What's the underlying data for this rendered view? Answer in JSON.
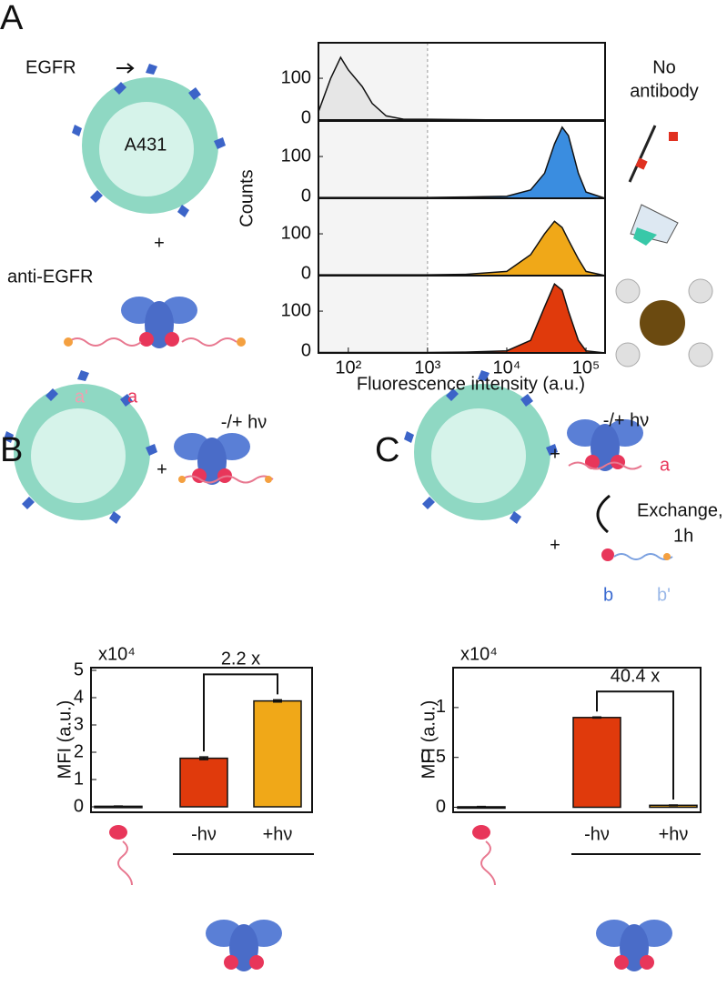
{
  "panel_labels": {
    "a": "A",
    "b": "B",
    "c": "C"
  },
  "diagram": {
    "egfr": "EGFR",
    "cell": "A431",
    "plus_a": "+",
    "antibody": "anti-EGFR",
    "strand_a_prime": "a'",
    "strand_a": "a",
    "no_antibody_1": "No",
    "no_antibody_2": "antibody",
    "b_light": "-/+ hν",
    "b_plus": "+",
    "c_light": "-/+ hν",
    "c_plus_1": "+",
    "c_plus_2": "+",
    "c_strand_a": "a",
    "exchange_1": "Exchange,",
    "exchange_2": "1h",
    "strand_b": "b",
    "strand_b_prime": "b'"
  },
  "chart_data": [
    {
      "type": "area",
      "xlabel": "Fluorescence intensity (a.u.)",
      "ylabel": "Counts",
      "log_x": true,
      "xlim": [
        42,
        174000
      ],
      "xticks": [
        {
          "value": 100,
          "label": "10²"
        },
        {
          "value": 1000,
          "label": "10³"
        },
        {
          "value": 10000,
          "label": "10⁴"
        },
        {
          "value": 100000,
          "label": "10⁵"
        }
      ],
      "ylim": [
        0,
        185
      ],
      "yticks": [
        0,
        100
      ],
      "reference_line_x": 1000,
      "x": [
        42,
        60,
        80,
        100,
        150,
        200,
        300,
        500,
        1000,
        3000,
        10000,
        20000,
        30000,
        40000,
        50000,
        60000,
        80000,
        100000,
        174000
      ],
      "panels": [
        {
          "color": "#e6e6e6",
          "values": [
            20,
            100,
            150,
            120,
            80,
            40,
            10,
            2,
            2,
            1,
            0,
            0,
            0,
            0,
            0,
            0,
            0,
            0,
            0
          ]
        },
        {
          "color": "#3a8de0",
          "values": [
            2,
            2,
            2,
            2,
            2,
            2,
            2,
            2,
            2,
            3,
            5,
            20,
            60,
            130,
            170,
            150,
            60,
            15,
            0
          ]
        },
        {
          "color": "#f0a818",
          "values": [
            2,
            2,
            2,
            2,
            2,
            2,
            2,
            2,
            2,
            3,
            10,
            50,
            100,
            130,
            115,
            85,
            40,
            10,
            0
          ]
        },
        {
          "color": "#e03a0c",
          "values": [
            1,
            1,
            1,
            1,
            1,
            1,
            1,
            1,
            1,
            2,
            5,
            30,
            110,
            165,
            150,
            100,
            30,
            5,
            0
          ]
        }
      ]
    },
    {
      "type": "bar",
      "ylabel": "MFI (a.u.)",
      "multiplier": "x10⁴",
      "categories": [
        null,
        "-hν",
        "+hν"
      ],
      "values": [
        0.02,
        1.78,
        3.88
      ],
      "errors": [
        0.01,
        0.05,
        0.04
      ],
      "colors": [
        "#e03a0c",
        "#e03a0c",
        "#f0a818"
      ],
      "ylim": [
        -0.2,
        5.1
      ],
      "yticks": [
        0,
        1,
        2,
        3,
        4,
        5
      ],
      "annotation": "2.2 x"
    },
    {
      "type": "bar",
      "ylabel": "MFI (a.u.)",
      "multiplier": "x10⁴",
      "categories": [
        null,
        "-hν",
        "+hν"
      ],
      "values": [
        0.005,
        0.9,
        0.02
      ],
      "errors": [
        0.003,
        0.005,
        0.003
      ],
      "colors": [
        "#e03a0c",
        "#e03a0c",
        "#f0a818"
      ],
      "ylim": [
        -0.05,
        1.4
      ],
      "yticks": [
        0,
        0.5,
        1
      ],
      "annotation": "40.4 x"
    }
  ]
}
